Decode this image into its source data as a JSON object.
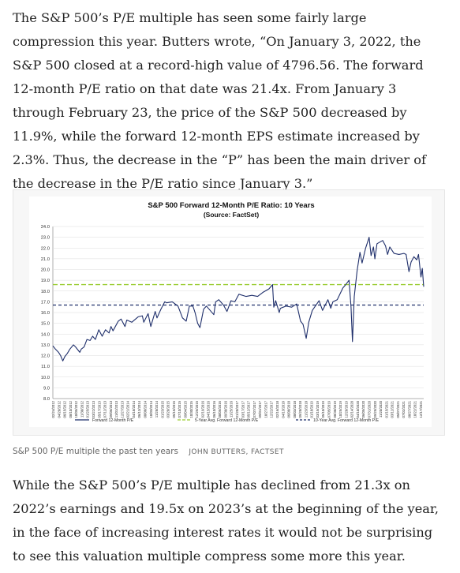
{
  "article": {
    "paragraph_1": "The S&P 500’s P/E multiple has seen some fairly large compression this year. Butters wrote, “On January 3, 2022, the S&P 500 closed at a record-high value of 4796.56. The forward 12-month P/E ratio on that date was 21.4x. From January 3 through February 23, the price of the S&P 500 decreased by 11.9%, while the forward 12-month EPS estimate increased by 2.3%. Thus, the decrease in the “P” has been the main driver of the decrease in the P/E ratio since January 3.”",
    "paragraph_2": "While the S&P 500’s P/E multiple has declined from 21.3x on 2022’s earnings and 19.5x on 2023’s at the beginning of the year, in the face of increasing interest rates it would not be surprising to see this valuation multiple compress some more this year."
  },
  "figure": {
    "caption": "S&P 500 P/E multiple the past ten years",
    "credit": "JOHN BUTTERS, FACTSET"
  },
  "chart_data": {
    "type": "line",
    "title": "S&P 500 Forward 12-Month P/E Ratio: 10 Years",
    "subtitle": "(Source: FactSet)",
    "xlabel": "",
    "ylabel": "",
    "ylim": [
      8.0,
      24.0
    ],
    "yticks": [
      "24.0",
      "23.0",
      "22.0",
      "21.0",
      "20.0",
      "19.0",
      "18.0",
      "17.0",
      "16.0",
      "15.0",
      "14.0",
      "13.0",
      "12.0",
      "11.0",
      "10.0",
      "9.0",
      "8.0"
    ],
    "xticks": [
      "02/24/2012",
      "04/20/2012",
      "06/15/2012",
      "08/10/2012",
      "10/05/2012",
      "11/30/2012",
      "01/25/2013",
      "03/22/2013",
      "05/17/2013",
      "07/12/2013",
      "09/06/2013",
      "11/01/2013",
      "12/27/2013",
      "02/21/2014",
      "04/18/2014",
      "06/13/2014",
      "08/08/2014",
      "10/03/2014",
      "11/28/2014",
      "01/23/2015",
      "03/20/2015",
      "05/15/2015",
      "07/10/2015",
      "09/04/2015",
      "10/30/2015",
      "12/25/2015",
      "02/19/2016",
      "04/15/2016",
      "06/10/2016",
      "08/05/2016",
      "09/30/2016",
      "11/25/2016",
      "01/20/2017",
      "03/17/2017",
      "05/12/2017",
      "07/07/2017",
      "09/01/2017",
      "10/27/2017",
      "12/22/2017",
      "02/16/2018",
      "04/13/2018",
      "06/08/2018",
      "08/03/2018",
      "09/28/2018",
      "11/23/2018",
      "01/18/2019",
      "03/15/2019",
      "05/10/2019",
      "07/05/2019",
      "08/30/2019",
      "10/25/2019",
      "12/20/2019",
      "02/14/2020",
      "04/10/2020",
      "06/05/2020",
      "07/31/2020",
      "09/25/2020",
      "11/20/2020",
      "01/15/2021",
      "03/12/2021",
      "05/07/2021",
      "07/02/2021",
      "08/27/2021",
      "10/22/2021",
      "12/17/2021"
    ],
    "x_range": [
      "2012-02-24",
      "2022-02-23"
    ],
    "series": [
      {
        "name": "Forward 12-Month P/E",
        "color": "#1f2f6b",
        "style": "solid",
        "points": [
          [
            "2012-02-24",
            12.9
          ],
          [
            "2012-03-20",
            12.6
          ],
          [
            "2012-04-20",
            12.3
          ],
          [
            "2012-05-10",
            12.0
          ],
          [
            "2012-06-01",
            11.5
          ],
          [
            "2012-06-20",
            11.9
          ],
          [
            "2012-07-15",
            12.2
          ],
          [
            "2012-08-10",
            12.6
          ],
          [
            "2012-09-14",
            13.0
          ],
          [
            "2012-10-05",
            12.8
          ],
          [
            "2012-11-15",
            12.3
          ],
          [
            "2012-11-30",
            12.6
          ],
          [
            "2012-12-28",
            12.8
          ],
          [
            "2013-01-25",
            13.5
          ],
          [
            "2013-02-25",
            13.4
          ],
          [
            "2013-03-22",
            13.8
          ],
          [
            "2013-04-18",
            13.5
          ],
          [
            "2013-05-21",
            14.4
          ],
          [
            "2013-06-24",
            13.8
          ],
          [
            "2013-07-26",
            14.4
          ],
          [
            "2013-08-30",
            14.1
          ],
          [
            "2013-09-19",
            14.7
          ],
          [
            "2013-10-08",
            14.3
          ],
          [
            "2013-11-29",
            15.2
          ],
          [
            "2013-12-27",
            15.4
          ],
          [
            "2014-02-03",
            14.7
          ],
          [
            "2014-02-21",
            15.3
          ],
          [
            "2014-04-11",
            15.1
          ],
          [
            "2014-06-13",
            15.6
          ],
          [
            "2014-07-24",
            15.7
          ],
          [
            "2014-08-07",
            15.1
          ],
          [
            "2014-09-19",
            15.9
          ],
          [
            "2014-10-15",
            14.7
          ],
          [
            "2014-11-28",
            16.1
          ],
          [
            "2014-12-16",
            15.5
          ],
          [
            "2015-01-23",
            16.3
          ],
          [
            "2015-03-02",
            17.0
          ],
          [
            "2015-03-20",
            16.9
          ],
          [
            "2015-05-15",
            17.0
          ],
          [
            "2015-07-10",
            16.6
          ],
          [
            "2015-08-24",
            15.5
          ],
          [
            "2015-09-29",
            15.2
          ],
          [
            "2015-10-30",
            16.6
          ],
          [
            "2015-12-04",
            16.6
          ],
          [
            "2015-12-25",
            16.0
          ],
          [
            "2016-01-20",
            15.0
          ],
          [
            "2016-02-11",
            14.6
          ],
          [
            "2016-03-18",
            16.3
          ],
          [
            "2016-04-15",
            16.6
          ],
          [
            "2016-06-27",
            15.8
          ],
          [
            "2016-07-15",
            17.0
          ],
          [
            "2016-08-15",
            17.2
          ],
          [
            "2016-09-30",
            16.7
          ],
          [
            "2016-11-04",
            16.1
          ],
          [
            "2016-12-13",
            17.1
          ],
          [
            "2017-01-20",
            17.0
          ],
          [
            "2017-03-01",
            17.7
          ],
          [
            "2017-05-12",
            17.5
          ],
          [
            "2017-07-07",
            17.6
          ],
          [
            "2017-09-01",
            17.5
          ],
          [
            "2017-10-27",
            17.9
          ],
          [
            "2017-12-22",
            18.2
          ],
          [
            "2018-01-26",
            18.6
          ],
          [
            "2018-02-08",
            16.5
          ],
          [
            "2018-02-26",
            17.1
          ],
          [
            "2018-04-02",
            16.0
          ],
          [
            "2018-04-13",
            16.4
          ],
          [
            "2018-06-08",
            16.6
          ],
          [
            "2018-08-03",
            16.5
          ],
          [
            "2018-09-21",
            16.8
          ],
          [
            "2018-10-29",
            15.2
          ],
          [
            "2018-11-23",
            14.9
          ],
          [
            "2018-12-24",
            13.6
          ],
          [
            "2019-01-18",
            15.1
          ],
          [
            "2019-02-22",
            16.2
          ],
          [
            "2019-04-30",
            17.1
          ],
          [
            "2019-06-03",
            16.2
          ],
          [
            "2019-07-26",
            17.2
          ],
          [
            "2019-08-23",
            16.4
          ],
          [
            "2019-09-13",
            17.0
          ],
          [
            "2019-10-25",
            17.2
          ],
          [
            "2019-12-20",
            18.3
          ],
          [
            "2020-01-17",
            18.6
          ],
          [
            "2020-02-19",
            19.0
          ],
          [
            "2020-03-09",
            16.5
          ],
          [
            "2020-03-23",
            13.3
          ],
          [
            "2020-04-10",
            17.5
          ],
          [
            "2020-05-08",
            19.9
          ],
          [
            "2020-06-05",
            21.6
          ],
          [
            "2020-06-26",
            20.6
          ],
          [
            "2020-07-31",
            22.0
          ],
          [
            "2020-08-28",
            22.8
          ],
          [
            "2020-09-03",
            23.0
          ],
          [
            "2020-09-23",
            21.3
          ],
          [
            "2020-10-16",
            22.1
          ],
          [
            "2020-10-30",
            21.0
          ],
          [
            "2020-11-20",
            22.4
          ],
          [
            "2021-01-15",
            22.7
          ],
          [
            "2021-02-12",
            22.2
          ],
          [
            "2021-03-04",
            21.4
          ],
          [
            "2021-03-26",
            22.1
          ],
          [
            "2021-05-07",
            21.5
          ],
          [
            "2021-06-25",
            21.4
          ],
          [
            "2021-08-13",
            21.5
          ],
          [
            "2021-09-03",
            21.4
          ],
          [
            "2021-10-01",
            19.8
          ],
          [
            "2021-10-22",
            20.7
          ],
          [
            "2021-11-19",
            21.2
          ],
          [
            "2021-12-17",
            20.9
          ],
          [
            "2022-01-03",
            21.4
          ],
          [
            "2022-01-27",
            19.3
          ],
          [
            "2022-02-09",
            20.1
          ],
          [
            "2022-02-23",
            18.4
          ]
        ]
      },
      {
        "name": "5-Year Avg. Forward 12-Month P/E",
        "color": "#9acd32",
        "style": "dashed",
        "value": 18.6
      },
      {
        "name": "10-Year Avg. Forward 12-Month P/E",
        "color": "#1f2f6b",
        "style": "dashed",
        "value": 16.7
      }
    ],
    "grid": true,
    "legend": "bottom"
  }
}
